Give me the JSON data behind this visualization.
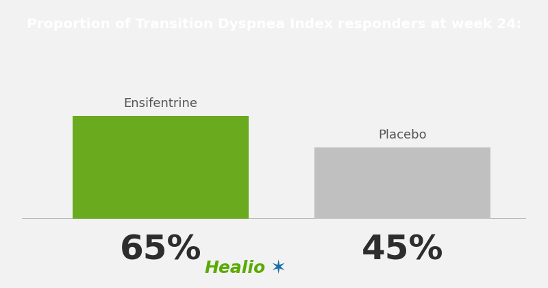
{
  "title": "Proportion of Transition Dyspnea Index responders at week 24:",
  "title_bg_color": "#6aaa1e",
  "title_text_color": "#ffffff",
  "bg_color": "#f2f2f2",
  "bar_labels": [
    "Ensifentrine",
    "Placebo"
  ],
  "bar_values": [
    65,
    45
  ],
  "bar_colors": [
    "#6aaa1e",
    "#c0c0c0"
  ],
  "value_labels": [
    "65%",
    "45%"
  ],
  "value_color": "#2d2d2d",
  "bar_label_color": "#555555",
  "healio_text": "Healio",
  "healio_text_color": "#5aaa00",
  "star_color": "#1a6fa8",
  "baseline_color": "#aaaaaa",
  "title_fontsize": 14.5,
  "bar_label_fontsize": 13,
  "value_fontsize": 36,
  "healio_fontsize": 18
}
